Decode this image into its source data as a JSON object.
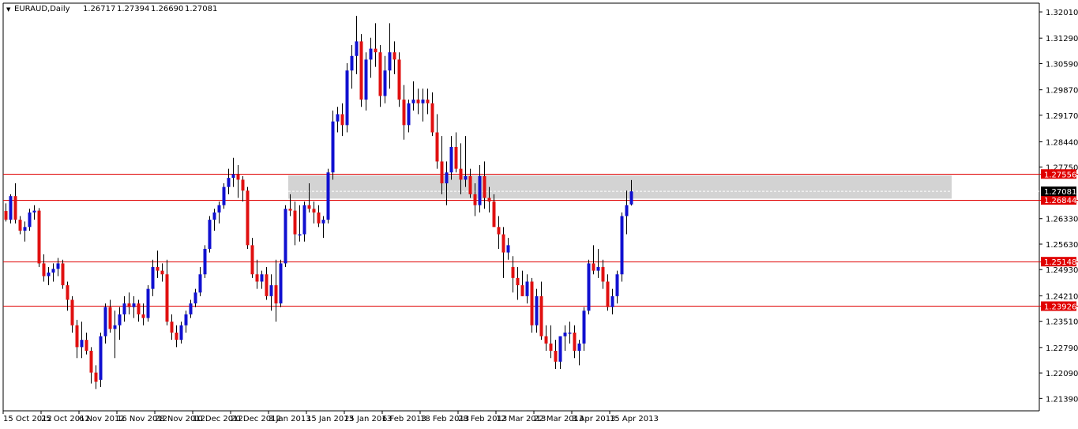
{
  "header": {
    "menu_glyph": "▼",
    "symbol": "EURAUD,Daily",
    "open": "1.26717",
    "high": "1.27394",
    "low": "1.26690",
    "close": "1.27081"
  },
  "colors": {
    "bull": "#1010d0",
    "bear": "#e01010",
    "wick": "#000000",
    "level_line": "#e00000",
    "zone_fill": "#d3d3d3",
    "tag_red_bg": "#e00000",
    "tag_black_bg": "#000000",
    "tag_text": "#ffffff",
    "background": "#ffffff"
  },
  "chart_data": {
    "type": "candlestick",
    "symbol": "EURAUD",
    "timeframe": "Daily",
    "ylim": [
      1.2105,
      1.3225
    ],
    "y_ticks": [
      "1.32010",
      "1.31290",
      "1.30590",
      "1.29870",
      "1.29170",
      "1.28440",
      "1.27750",
      "1.27081",
      "1.26330",
      "1.25630",
      "1.24930",
      "1.24210",
      "1.23510",
      "1.22790",
      "1.22090",
      "1.21390"
    ],
    "x_labels": [
      {
        "label": "15 Oct 2012",
        "index": 0
      },
      {
        "label": "25 Oct 2012",
        "index": 8
      },
      {
        "label": "6 Nov 2012",
        "index": 16
      },
      {
        "label": "16 Nov 2012",
        "index": 24
      },
      {
        "label": "28 Nov 2012",
        "index": 32
      },
      {
        "label": "10 Dec 2012",
        "index": 40
      },
      {
        "label": "20 Dec 2012",
        "index": 48
      },
      {
        "label": "3 Jan 2013",
        "index": 56
      },
      {
        "label": "15 Jan 2013",
        "index": 64
      },
      {
        "label": "25 Jan 2013",
        "index": 72
      },
      {
        "label": "6 Feb 2013",
        "index": 80
      },
      {
        "label": "18 Feb 2013",
        "index": 88
      },
      {
        "label": "28 Feb 2013",
        "index": 96
      },
      {
        "label": "12 Mar 2013",
        "index": 104
      },
      {
        "label": "22 Mar 2013",
        "index": 112
      },
      {
        "label": "3 Apr 2013",
        "index": 120
      },
      {
        "label": "15 Apr 2013",
        "index": 128
      }
    ],
    "horizontal_levels": [
      "1.27556",
      "1.26844",
      "1.25148",
      "1.23926"
    ],
    "current_price": "1.27081",
    "shaded_zone": {
      "from": 1.2688,
      "to": 1.2752
    },
    "candles": [
      [
        1.2654,
        1.2675,
        1.2625,
        1.263
      ],
      [
        1.263,
        1.27,
        1.262,
        1.2695
      ],
      [
        1.2695,
        1.273,
        1.262,
        1.263
      ],
      [
        1.263,
        1.264,
        1.259,
        1.26
      ],
      [
        1.26,
        1.2625,
        1.257,
        1.261
      ],
      [
        1.261,
        1.266,
        1.26,
        1.265
      ],
      [
        1.265,
        1.267,
        1.263,
        1.2655
      ],
      [
        1.2655,
        1.2662,
        1.25,
        1.251
      ],
      [
        1.251,
        1.2535,
        1.246,
        1.2475
      ],
      [
        1.2475,
        1.25,
        1.245,
        1.2485
      ],
      [
        1.2485,
        1.251,
        1.246,
        1.2495
      ],
      [
        1.2495,
        1.2525,
        1.2475,
        1.251
      ],
      [
        1.251,
        1.252,
        1.244,
        1.245
      ],
      [
        1.245,
        1.246,
        1.238,
        1.241
      ],
      [
        1.241,
        1.242,
        1.232,
        1.234
      ],
      [
        1.234,
        1.2355,
        1.225,
        1.228
      ],
      [
        1.228,
        1.235,
        1.225,
        1.23
      ],
      [
        1.23,
        1.232,
        1.226,
        1.227
      ],
      [
        1.227,
        1.228,
        1.218,
        1.221
      ],
      [
        1.221,
        1.223,
        1.2165,
        1.2185
      ],
      [
        1.219,
        1.232,
        1.217,
        1.231
      ],
      [
        1.231,
        1.24,
        1.229,
        1.239
      ],
      [
        1.239,
        1.241,
        1.232,
        1.233
      ],
      [
        1.233,
        1.238,
        1.225,
        1.234
      ],
      [
        1.234,
        1.239,
        1.23,
        1.237
      ],
      [
        1.237,
        1.242,
        1.235,
        1.24
      ],
      [
        1.24,
        1.243,
        1.237,
        1.239
      ],
      [
        1.239,
        1.242,
        1.236,
        1.24
      ],
      [
        1.24,
        1.241,
        1.235,
        1.237
      ],
      [
        1.237,
        1.24,
        1.234,
        1.236
      ],
      [
        1.236,
        1.245,
        1.235,
        1.244
      ],
      [
        1.244,
        1.252,
        1.242,
        1.25
      ],
      [
        1.25,
        1.2545,
        1.247,
        1.249
      ],
      [
        1.249,
        1.251,
        1.246,
        1.248
      ],
      [
        1.248,
        1.252,
        1.234,
        1.235
      ],
      [
        1.235,
        1.237,
        1.23,
        1.232
      ],
      [
        1.232,
        1.234,
        1.228,
        1.23
      ],
      [
        1.23,
        1.235,
        1.229,
        1.234
      ],
      [
        1.234,
        1.238,
        1.232,
        1.237
      ],
      [
        1.237,
        1.241,
        1.236,
        1.24
      ],
      [
        1.24,
        1.244,
        1.239,
        1.243
      ],
      [
        1.243,
        1.25,
        1.242,
        1.248
      ],
      [
        1.248,
        1.256,
        1.247,
        1.255
      ],
      [
        1.255,
        1.264,
        1.254,
        1.263
      ],
      [
        1.263,
        1.266,
        1.26,
        1.265
      ],
      [
        1.265,
        1.268,
        1.262,
        1.267
      ],
      [
        1.267,
        1.273,
        1.266,
        1.272
      ],
      [
        1.272,
        1.277,
        1.27,
        1.2745
      ],
      [
        1.2745,
        1.28,
        1.272,
        1.2755
      ],
      [
        1.2755,
        1.278,
        1.269,
        1.274
      ],
      [
        1.274,
        1.275,
        1.268,
        1.271
      ],
      [
        1.271,
        1.272,
        1.255,
        1.256
      ],
      [
        1.256,
        1.258,
        1.247,
        1.248
      ],
      [
        1.248,
        1.252,
        1.244,
        1.246
      ],
      [
        1.246,
        1.249,
        1.244,
        1.248
      ],
      [
        1.248,
        1.25,
        1.241,
        1.242
      ],
      [
        1.242,
        1.248,
        1.238,
        1.245
      ],
      [
        1.245,
        1.252,
        1.235,
        1.24
      ],
      [
        1.24,
        1.252,
        1.239,
        1.251
      ],
      [
        1.251,
        1.267,
        1.25,
        1.266
      ],
      [
        1.266,
        1.27,
        1.264,
        1.2655
      ],
      [
        1.2655,
        1.268,
        1.256,
        1.259
      ],
      [
        1.259,
        1.267,
        1.257,
        1.259
      ],
      [
        1.259,
        1.268,
        1.257,
        1.267
      ],
      [
        1.267,
        1.273,
        1.265,
        1.266
      ],
      [
        1.266,
        1.268,
        1.262,
        1.265
      ],
      [
        1.265,
        1.267,
        1.261,
        1.262
      ],
      [
        1.262,
        1.264,
        1.258,
        1.263
      ],
      [
        1.263,
        1.277,
        1.262,
        1.276
      ],
      [
        1.276,
        1.293,
        1.274,
        1.29
      ],
      [
        1.29,
        1.294,
        1.287,
        1.292
      ],
      [
        1.292,
        1.295,
        1.286,
        1.289
      ],
      [
        1.289,
        1.306,
        1.287,
        1.304
      ],
      [
        1.304,
        1.311,
        1.299,
        1.308
      ],
      [
        1.308,
        1.319,
        1.303,
        1.312
      ],
      [
        1.312,
        1.314,
        1.294,
        1.296
      ],
      [
        1.296,
        1.309,
        1.293,
        1.307
      ],
      [
        1.307,
        1.313,
        1.302,
        1.31
      ],
      [
        1.31,
        1.317,
        1.305,
        1.309
      ],
      [
        1.309,
        1.311,
        1.294,
        1.297
      ],
      [
        1.297,
        1.308,
        1.295,
        1.304
      ],
      [
        1.304,
        1.317,
        1.299,
        1.309
      ],
      [
        1.309,
        1.312,
        1.303,
        1.307
      ],
      [
        1.307,
        1.309,
        1.294,
        1.296
      ],
      [
        1.296,
        1.3,
        1.285,
        1.289
      ],
      [
        1.289,
        1.296,
        1.287,
        1.295
      ],
      [
        1.295,
        1.301,
        1.293,
        1.296
      ],
      [
        1.296,
        1.299,
        1.292,
        1.295
      ],
      [
        1.295,
        1.299,
        1.29,
        1.296
      ],
      [
        1.296,
        1.299,
        1.292,
        1.295
      ],
      [
        1.295,
        1.298,
        1.286,
        1.287
      ],
      [
        1.287,
        1.292,
        1.277,
        1.279
      ],
      [
        1.279,
        1.286,
        1.27,
        1.273
      ],
      [
        1.273,
        1.279,
        1.267,
        1.276
      ],
      [
        1.276,
        1.286,
        1.274,
        1.283
      ],
      [
        1.283,
        1.287,
        1.276,
        1.277
      ],
      [
        1.277,
        1.284,
        1.27,
        1.274
      ],
      [
        1.274,
        1.286,
        1.272,
        1.275
      ],
      [
        1.275,
        1.277,
        1.269,
        1.27
      ],
      [
        1.27,
        1.273,
        1.264,
        1.267
      ],
      [
        1.267,
        1.278,
        1.265,
        1.275
      ],
      [
        1.275,
        1.279,
        1.266,
        1.269
      ],
      [
        1.269,
        1.272,
        1.265,
        1.268
      ],
      [
        1.268,
        1.27,
        1.262,
        1.261
      ],
      [
        1.261,
        1.264,
        1.255,
        1.259
      ],
      [
        1.259,
        1.261,
        1.247,
        1.254
      ],
      [
        1.254,
        1.258,
        1.252,
        1.256
      ],
      [
        1.25,
        1.253,
        1.243,
        1.247
      ],
      [
        1.247,
        1.25,
        1.241,
        1.245
      ],
      [
        1.245,
        1.249,
        1.242,
        1.242
      ],
      [
        1.242,
        1.248,
        1.24,
        1.246
      ],
      [
        1.246,
        1.247,
        1.232,
        1.234
      ],
      [
        1.234,
        1.244,
        1.232,
        1.242
      ],
      [
        1.242,
        1.246,
        1.23,
        1.231
      ],
      [
        1.231,
        1.234,
        1.227,
        1.229
      ],
      [
        1.229,
        1.234,
        1.225,
        1.227
      ],
      [
        1.227,
        1.23,
        1.222,
        1.224
      ],
      [
        1.224,
        1.231,
        1.222,
        1.231
      ],
      [
        1.231,
        1.234,
        1.227,
        1.232
      ],
      [
        1.232,
        1.235,
        1.229,
        1.232
      ],
      [
        1.232,
        1.234,
        1.225,
        1.227
      ],
      [
        1.227,
        1.23,
        1.223,
        1.229
      ],
      [
        1.229,
        1.239,
        1.227,
        1.238
      ],
      [
        1.238,
        1.252,
        1.237,
        1.251
      ],
      [
        1.251,
        1.256,
        1.248,
        1.249
      ],
      [
        1.249,
        1.255,
        1.247,
        1.25
      ],
      [
        1.25,
        1.252,
        1.244,
        1.246
      ],
      [
        1.246,
        1.248,
        1.238,
        1.239
      ],
      [
        1.239,
        1.244,
        1.237,
        1.242
      ],
      [
        1.242,
        1.249,
        1.24,
        1.248
      ],
      [
        1.248,
        1.265,
        1.246,
        1.264
      ],
      [
        1.264,
        1.271,
        1.259,
        1.267
      ],
      [
        1.2672,
        1.2739,
        1.2669,
        1.2708
      ]
    ]
  }
}
